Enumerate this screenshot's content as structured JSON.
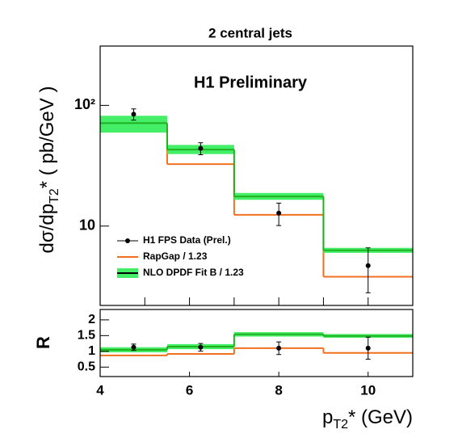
{
  "chart_data": [
    {
      "type": "histogram",
      "title": "2 central jets",
      "annotation": "H1 Preliminary",
      "y_label": {
        "text": "dσ/dp",
        "sub": "T2",
        "rest": "* ( pb/GeV )"
      },
      "bins": [
        4,
        5.5,
        7,
        9,
        11
      ],
      "xlim": [
        4,
        11
      ],
      "xticks": [
        4,
        5,
        6,
        7,
        8,
        9,
        10,
        11
      ],
      "xtick_labels": false,
      "log_y": true,
      "ylim": [
        2.2,
        310
      ],
      "yticks": [
        10,
        {
          "value": 100,
          "label": "10²"
        }
      ],
      "legend": "bottom-left",
      "series": [
        {
          "name": "H1 FPS Data (Prel.)",
          "style": "points",
          "color": "#000000",
          "x": [
            4.75,
            6.25,
            8,
            10
          ],
          "values": [
            84.5,
            44,
            12.8,
            4.7
          ],
          "errors": [
            9,
            5,
            2.7,
            1.9
          ]
        },
        {
          "name": "RapGap / 1.23",
          "style": "step",
          "color": "#f07020",
          "values": [
            64,
            32.6,
            12.4,
            3.8
          ]
        },
        {
          "name": "NLO DPDF Fit B / 1.23",
          "style": "step",
          "color": "#20b020",
          "band_color": "#44ee66",
          "values": [
            71.3,
            43,
            17.6,
            6.3
          ],
          "band_low": [
            59.5,
            39.5,
            16.5,
            6.0
          ],
          "band_high": [
            82,
            47,
            18.8,
            6.6
          ]
        }
      ]
    },
    {
      "type": "histogram",
      "y_label": "R",
      "x_label": {
        "text": "p",
        "sub": "T2",
        "rest": "*  (GeV)"
      },
      "bins": [
        4,
        5.5,
        7,
        9,
        11
      ],
      "xlim": [
        4,
        11
      ],
      "xticks": [
        4,
        6,
        8,
        10
      ],
      "xtick_labels": true,
      "log_y": false,
      "ylim": [
        0.2,
        2.33
      ],
      "yticks": [
        0.5,
        1,
        1.5,
        2
      ],
      "series": [
        {
          "style": "points",
          "color": "#000000",
          "x": [
            4.75,
            6.25,
            8,
            10
          ],
          "values": [
            1.13,
            1.13,
            1.1,
            1.1
          ],
          "errors": [
            0.1,
            0.12,
            0.2,
            0.35
          ]
        },
        {
          "style": "step",
          "color": "#f07020",
          "values": [
            0.87,
            0.92,
            1.1,
            0.95
          ]
        },
        {
          "style": "step",
          "color": "#20b020",
          "band_color": "#44ee66",
          "values": [
            1.05,
            1.15,
            1.54,
            1.49
          ],
          "band_low": [
            0.97,
            1.07,
            1.47,
            1.43
          ],
          "band_high": [
            1.13,
            1.23,
            1.61,
            1.55
          ]
        }
      ]
    }
  ]
}
